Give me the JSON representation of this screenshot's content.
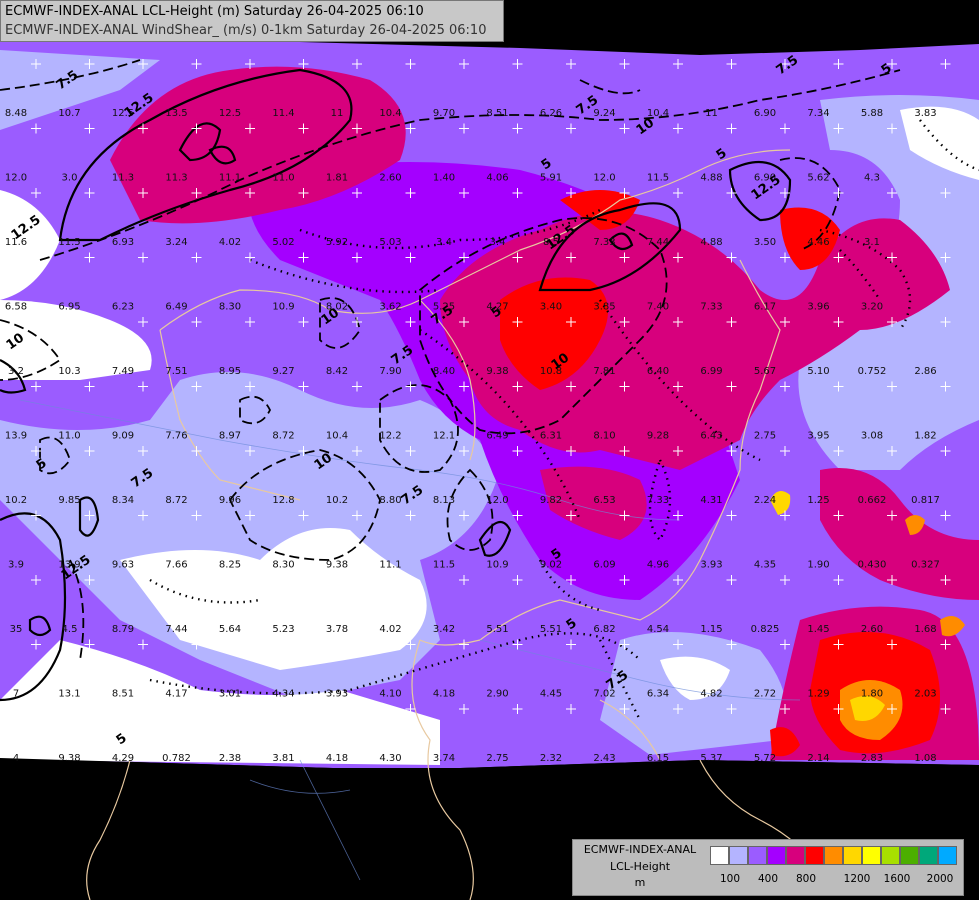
{
  "title": {
    "line1": "ECMWF-INDEX-ANAL LCL-Height (m) Saturday 26-04-2025 06:10",
    "line2": "ECMWF-INDEX-ANAL WindShear_ (m/s) 0-1km Saturday 26-04-2025 06:10"
  },
  "legend": {
    "model": "ECMWF-INDEX-ANAL",
    "field": "LCL-Height",
    "unit": "m",
    "colors": [
      "#ffffff",
      "#b4b4ff",
      "#9b5cff",
      "#a400ff",
      "#d7007d",
      "#ff0000",
      "#ff8c00",
      "#ffd700",
      "#ffff00",
      "#a8e000",
      "#4caf00",
      "#00a87a",
      "#00aaff"
    ],
    "ticks": [
      "100",
      "400",
      "800",
      "1200",
      "1600",
      "2000"
    ]
  },
  "contour_labels": [
    "12.5",
    "12.5",
    "12.5",
    "12.5",
    "12.5",
    "10",
    "10",
    "10",
    "10",
    "10",
    "7.5",
    "7.5",
    "7.5",
    "7.5",
    "7.5",
    "7.5",
    "7.5",
    "5",
    "5",
    "5",
    "5",
    "5",
    "5",
    "5",
    "5",
    "7.5"
  ],
  "values": [
    "8.48",
    "10.7",
    "12.5",
    "13.5",
    "12.5",
    "11.4",
    "11",
    "10.4",
    "9.70",
    "8.51",
    "6.26",
    "9.24",
    "10.4",
    "11",
    "6.90",
    "7.34",
    "5.88",
    "3.83",
    "12.0",
    "3.0",
    "11.3",
    "11.3",
    "11.1",
    "11.0",
    "1.81",
    "2.60",
    "1.40",
    "4.06",
    "5.91",
    "12.0",
    "11.5",
    "4.88",
    "6.90",
    "5.62",
    "4.3",
    "11.6",
    "11.5",
    "6.93",
    "3.24",
    "4.02",
    "5.02",
    "5.92",
    "5.03",
    "3.4",
    "3.4",
    "8.5",
    "7.33",
    "7.44",
    "4.88",
    "3.50",
    "4.46",
    "3.1",
    "6.58",
    "6.95",
    "6.23",
    "6.49",
    "8.30",
    "10.9",
    "8.02",
    "3.62",
    "5.25",
    "4.27",
    "3.40",
    "3.85",
    "7.40",
    "7.33",
    "6.17",
    "3.96",
    "3.20",
    "3.2",
    "10.3",
    "7.49",
    "7.51",
    "8.95",
    "9.27",
    "8.42",
    "7.90",
    "8.40",
    "9.38",
    "10.8",
    "7.81",
    "6.40",
    "6.99",
    "5.67",
    "5.10",
    "0.752",
    "2.86",
    "13.9",
    "11.0",
    "9.09",
    "7.76",
    "8.97",
    "8.72",
    "10.4",
    "12.2",
    "12.1",
    "6.49",
    "6.31",
    "8.10",
    "9.28",
    "6.43",
    "2.75",
    "3.95",
    "3.08",
    "1.82",
    "10.2",
    "9.85",
    "8.34",
    "8.72",
    "9.96",
    "12.8",
    "10.2",
    "8.80",
    "8.13",
    "12.0",
    "9.82",
    "6.53",
    "7.33",
    "4.31",
    "2.24",
    "1.25",
    "0.662",
    "0.817",
    "3.9",
    "13.9",
    "9.63",
    "7.66",
    "8.25",
    "8.30",
    "9.38",
    "11.1",
    "11.5",
    "10.9",
    "9.02",
    "6.09",
    "4.96",
    "3.93",
    "4.35",
    "1.90",
    "0.430",
    "0.327",
    "35",
    "4.5",
    "8.79",
    "7.44",
    "5.64",
    "5.23",
    "3.78",
    "4.02",
    "3.42",
    "5.51",
    "5.51",
    "6.82",
    "4.54",
    "1.15",
    "0.825",
    "1.45",
    "2.60",
    "1.68",
    "7",
    "13.1",
    "8.51",
    "4.17",
    "3.01",
    "4.34",
    "3.93",
    "4.10",
    "4.18",
    "2.90",
    "4.45",
    "7.02",
    "6.34",
    "4.82",
    "2.72",
    "1.29",
    "1.80",
    "2.03",
    "4",
    "9.38",
    "4.29",
    "0.782",
    "2.38",
    "3.81",
    "4.18",
    "4.30",
    "3.74",
    "2.75",
    "2.32",
    "2.43",
    "6.15",
    "5.37",
    "5.72",
    "2.14",
    "2.83",
    "1.08"
  ]
}
